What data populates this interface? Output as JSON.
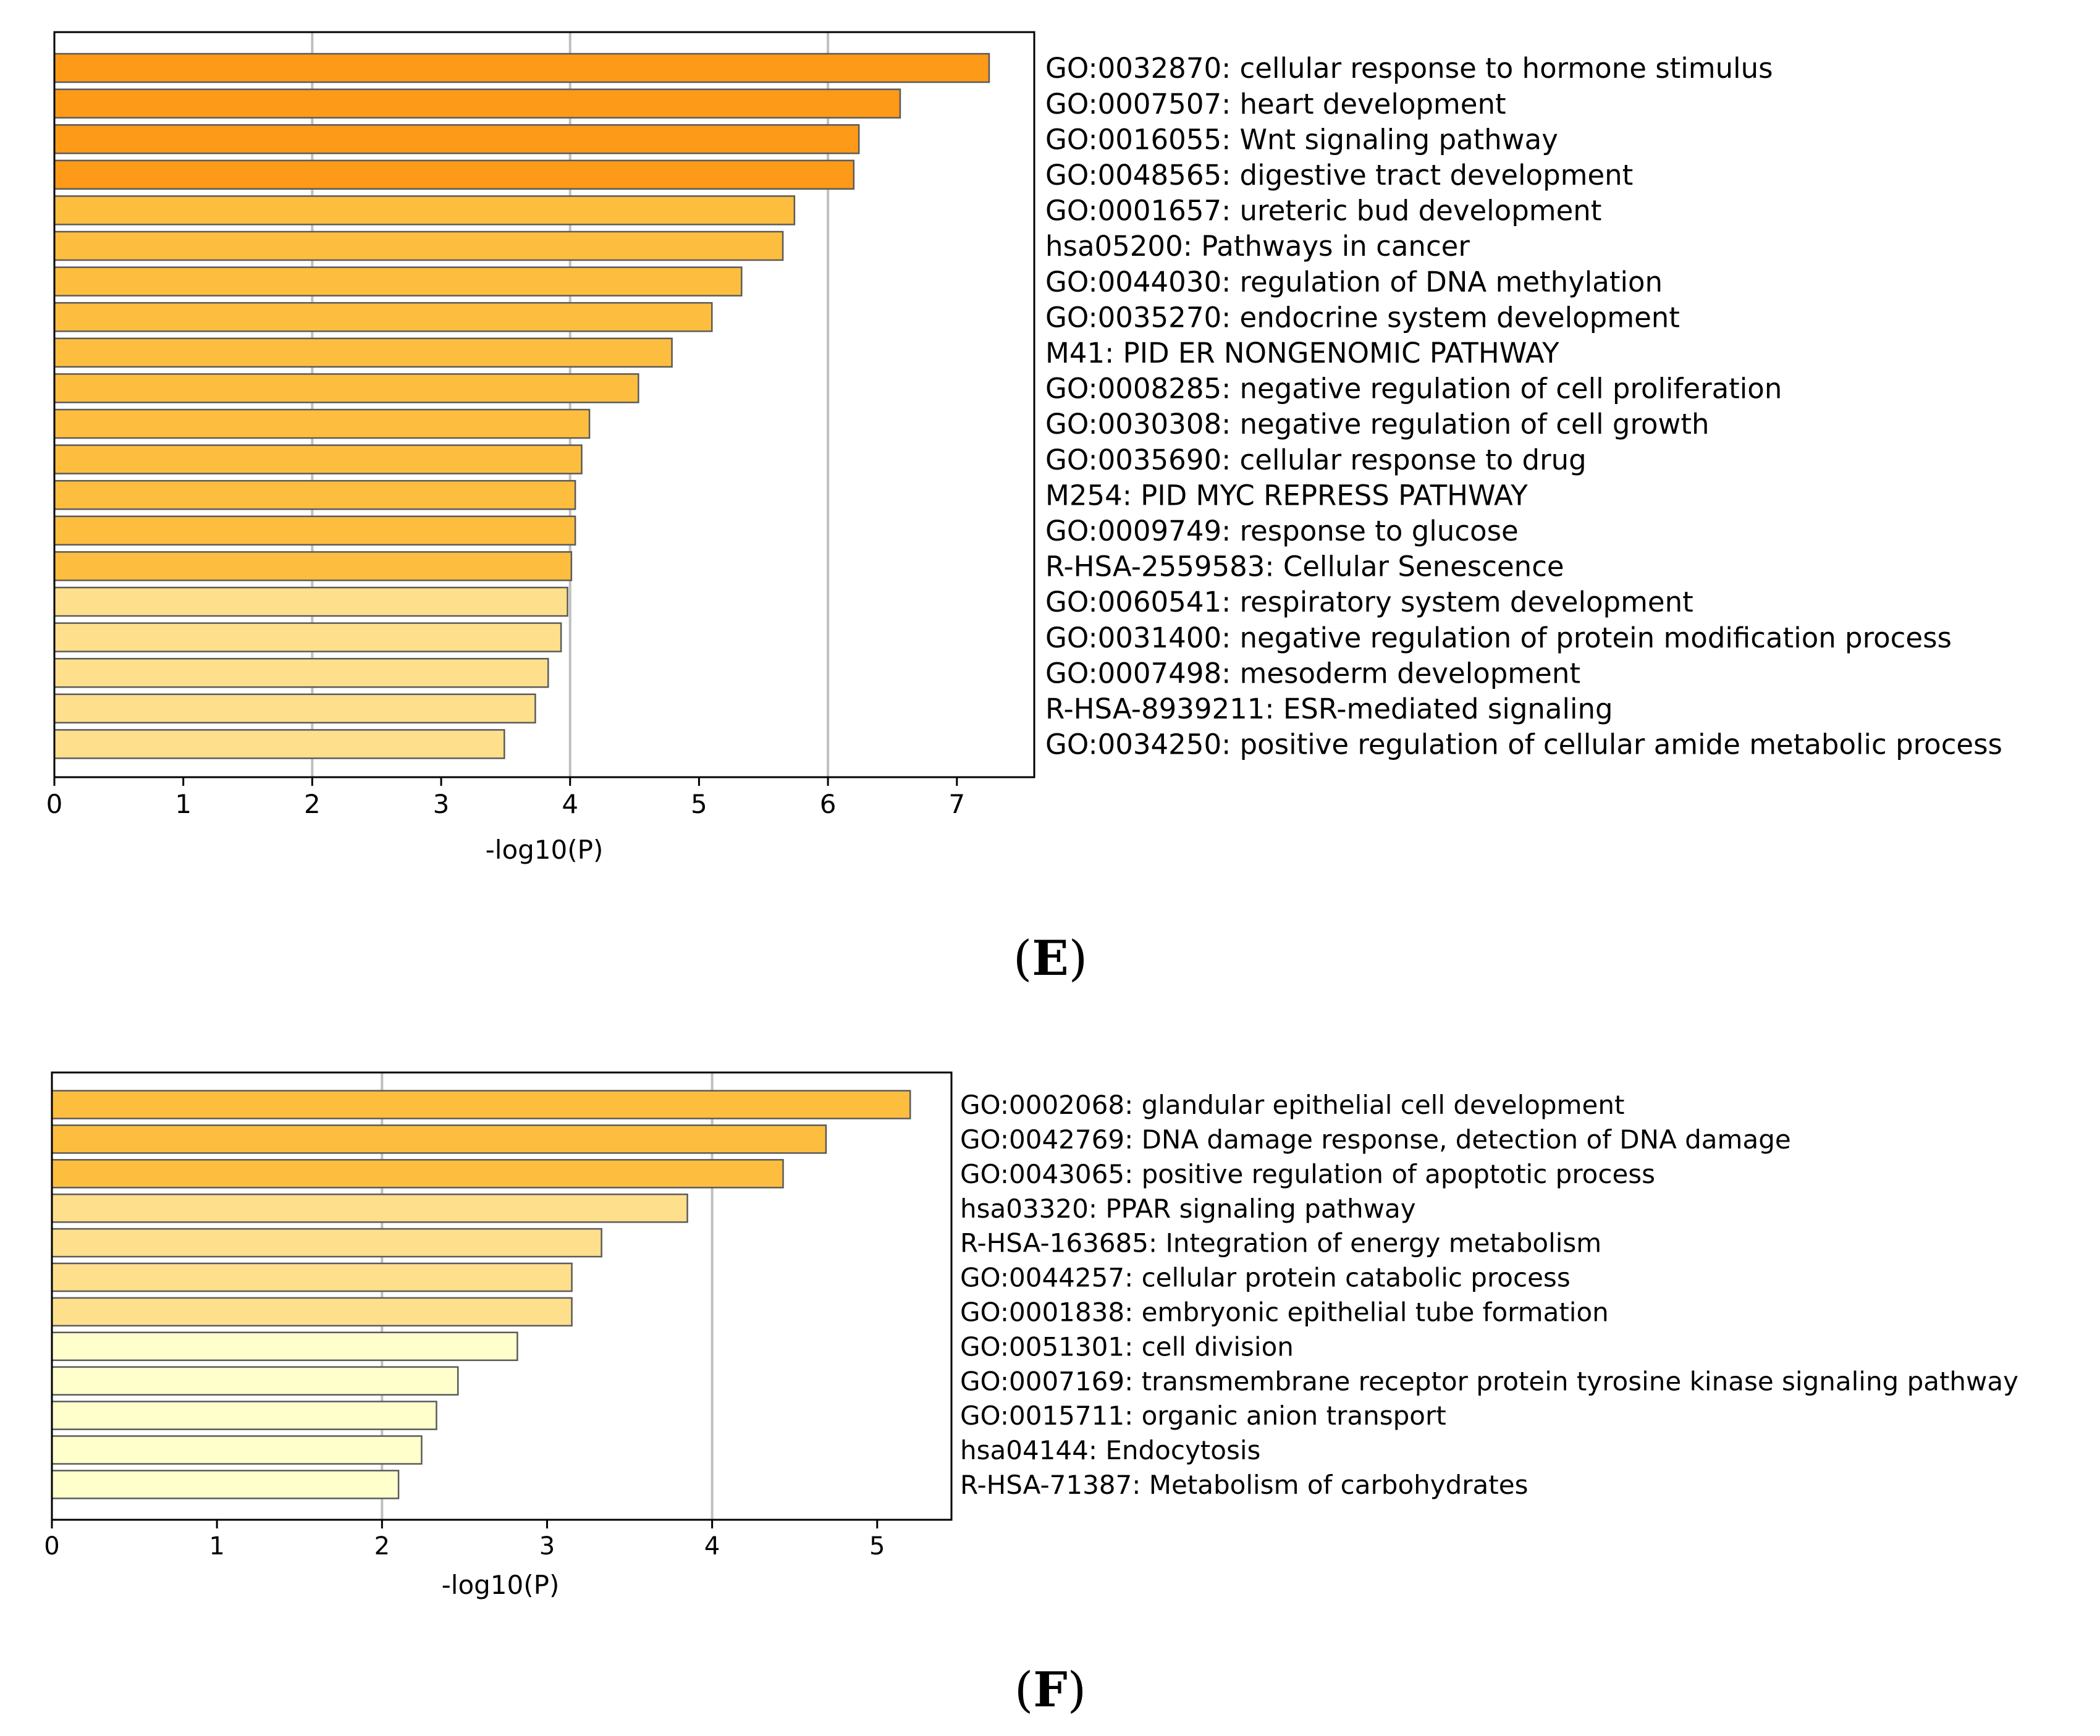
{
  "chart_data": [
    {
      "type": "bar",
      "orientation": "horizontal",
      "panel_label": "E",
      "xlabel": "-log10(P)",
      "ylabel": "",
      "xlim": [
        0,
        7.6
      ],
      "xticks": [
        "0",
        "1",
        "2",
        "3",
        "4",
        "5",
        "6",
        "7"
      ],
      "grid_x": [
        2,
        4,
        6
      ],
      "categories": [
        "GO:0032870: cellular response to hormone stimulus",
        "GO:0007507: heart development",
        "GO:0016055: Wnt signaling pathway",
        "GO:0048565: digestive tract development",
        "GO:0001657: ureteric bud development",
        "hsa05200: Pathways in cancer",
        "GO:0044030: regulation of DNA methylation",
        "GO:0035270: endocrine system development",
        "M41: PID ER NONGENOMIC PATHWAY",
        "GO:0008285: negative regulation of cell proliferation",
        "GO:0030308: negative regulation of cell growth",
        "GO:0035690: cellular response to drug",
        "M254: PID MYC REPRESS PATHWAY",
        "GO:0009749: response to glucose",
        "R-HSA-2559583: Cellular Senescence",
        "GO:0060541: respiratory system development",
        "GO:0031400: negative regulation of protein modification process",
        "GO:0007498: mesoderm development",
        "R-HSA-8939211: ESR-mediated signaling",
        "GO:0034250: positive regulation of cellular amide metabolic process"
      ],
      "values": [
        7.25,
        6.56,
        6.24,
        6.2,
        5.74,
        5.65,
        5.33,
        5.1,
        4.79,
        4.53,
        4.15,
        4.09,
        4.04,
        4.04,
        4.01,
        3.98,
        3.93,
        3.83,
        3.73,
        3.49
      ],
      "colors": [
        "#fd9a18",
        "#fd9a18",
        "#fd9a18",
        "#fd9a18",
        "#fdbe3f",
        "#fdbe3f",
        "#fdbe3f",
        "#fdbe3f",
        "#fdbe3f",
        "#fdbe3f",
        "#fdbe3f",
        "#fdbe3f",
        "#fdbe3f",
        "#fdbe3f",
        "#fdbe3f",
        "#fedf8c",
        "#fedf8c",
        "#fedf8c",
        "#fedf8c",
        "#fedf8c"
      ]
    },
    {
      "type": "bar",
      "orientation": "horizontal",
      "panel_label": "F",
      "xlabel": "-log10(P)",
      "ylabel": "",
      "xlim": [
        0,
        5.45
      ],
      "xticks": [
        "0",
        "1",
        "2",
        "3",
        "4",
        "5"
      ],
      "grid_x": [
        2,
        4
      ],
      "categories": [
        "GO:0002068: glandular epithelial cell development",
        "GO:0042769: DNA damage response, detection of DNA damage",
        "GO:0043065: positive regulation of apoptotic process",
        "hsa03320: PPAR signaling pathway",
        "R-HSA-163685: Integration of energy metabolism",
        "GO:0044257: cellular protein catabolic process",
        "GO:0001838: embryonic epithelial tube formation",
        "GO:0051301: cell division",
        "GO:0007169: transmembrane receptor protein tyrosine kinase signaling pathway",
        "GO:0015711: organic anion transport",
        "hsa04144: Endocytosis",
        "R-HSA-71387: Metabolism of carbohydrates"
      ],
      "values": [
        5.2,
        4.69,
        4.43,
        3.85,
        3.33,
        3.15,
        3.15,
        2.82,
        2.46,
        2.33,
        2.24,
        2.1
      ],
      "colors": [
        "#fdbe3f",
        "#fdbe3f",
        "#fdbe3f",
        "#fedf8c",
        "#fedf8c",
        "#fedf8c",
        "#fedf8c",
        "#ffffcc",
        "#ffffcc",
        "#ffffcc",
        "#ffffcc",
        "#ffffcc"
      ]
    }
  ]
}
